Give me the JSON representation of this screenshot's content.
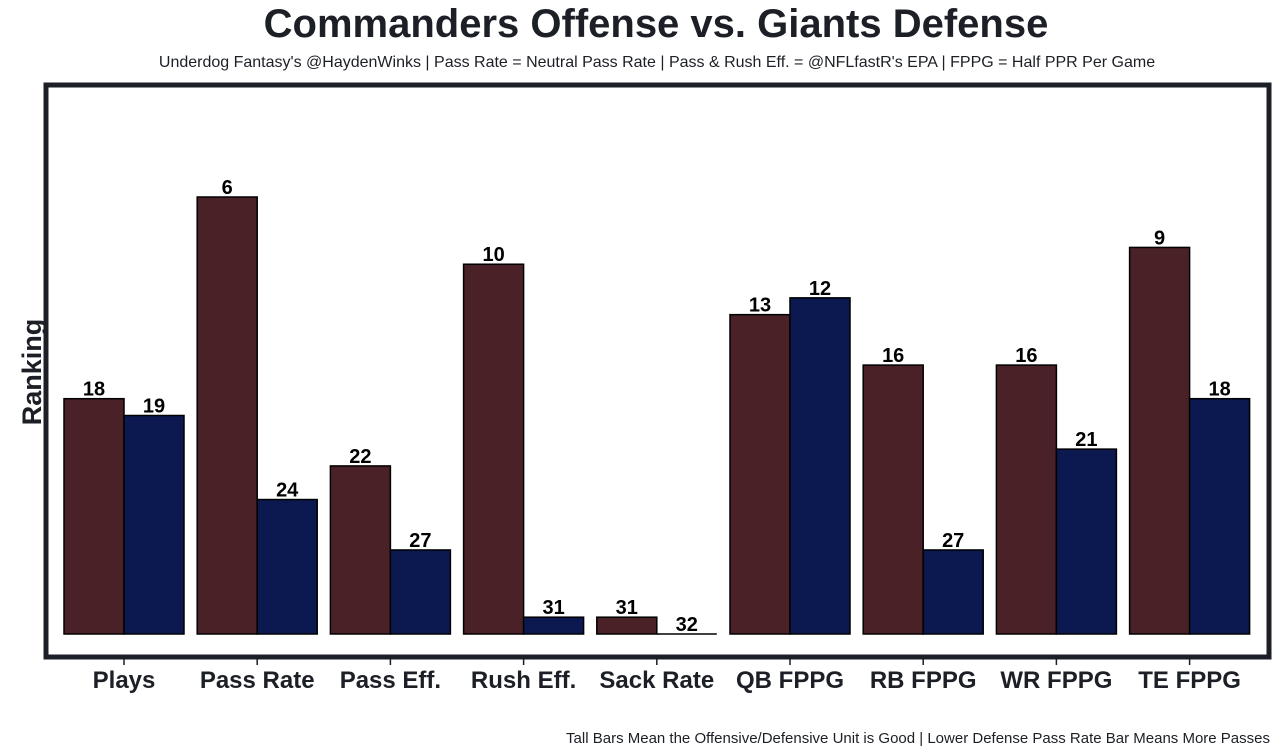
{
  "chart_data": {
    "type": "bar",
    "title": "Commanders Offense vs. Giants Defense",
    "subtitle": "Underdog Fantasy's @HaydenWinks | Pass Rate = Neutral Pass Rate | Pass & Rush Eff. = @NFLfastR's EPA | FPPG = Half PPR Per Game",
    "footnote": "Tall Bars Mean the Offensive/Defensive Unit is Good | Lower Defense Pass Rate Bar Means More Passes",
    "xlabel": "",
    "ylabel": "Ranking",
    "categories": [
      "Plays",
      "Pass Rate",
      "Pass Eff.",
      "Rush Eff.",
      "Sack Rate",
      "QB FPPG",
      "RB FPPG",
      "WR FPPG",
      "TE FPPG"
    ],
    "series": [
      {
        "name": "Commanders Offense",
        "color": "#4a2126",
        "values": [
          18,
          6,
          22,
          10,
          31,
          13,
          16,
          16,
          9
        ]
      },
      {
        "name": "Giants Defense",
        "color": "#0c1850",
        "values": [
          19,
          24,
          27,
          31,
          32,
          12,
          27,
          21,
          18
        ]
      }
    ],
    "value_transform": "bar height = 32 - ranking (rank 1 tallest)",
    "ylim": [
      0,
      32
    ],
    "yticks_shown": false,
    "grid": false,
    "legend": "none"
  }
}
